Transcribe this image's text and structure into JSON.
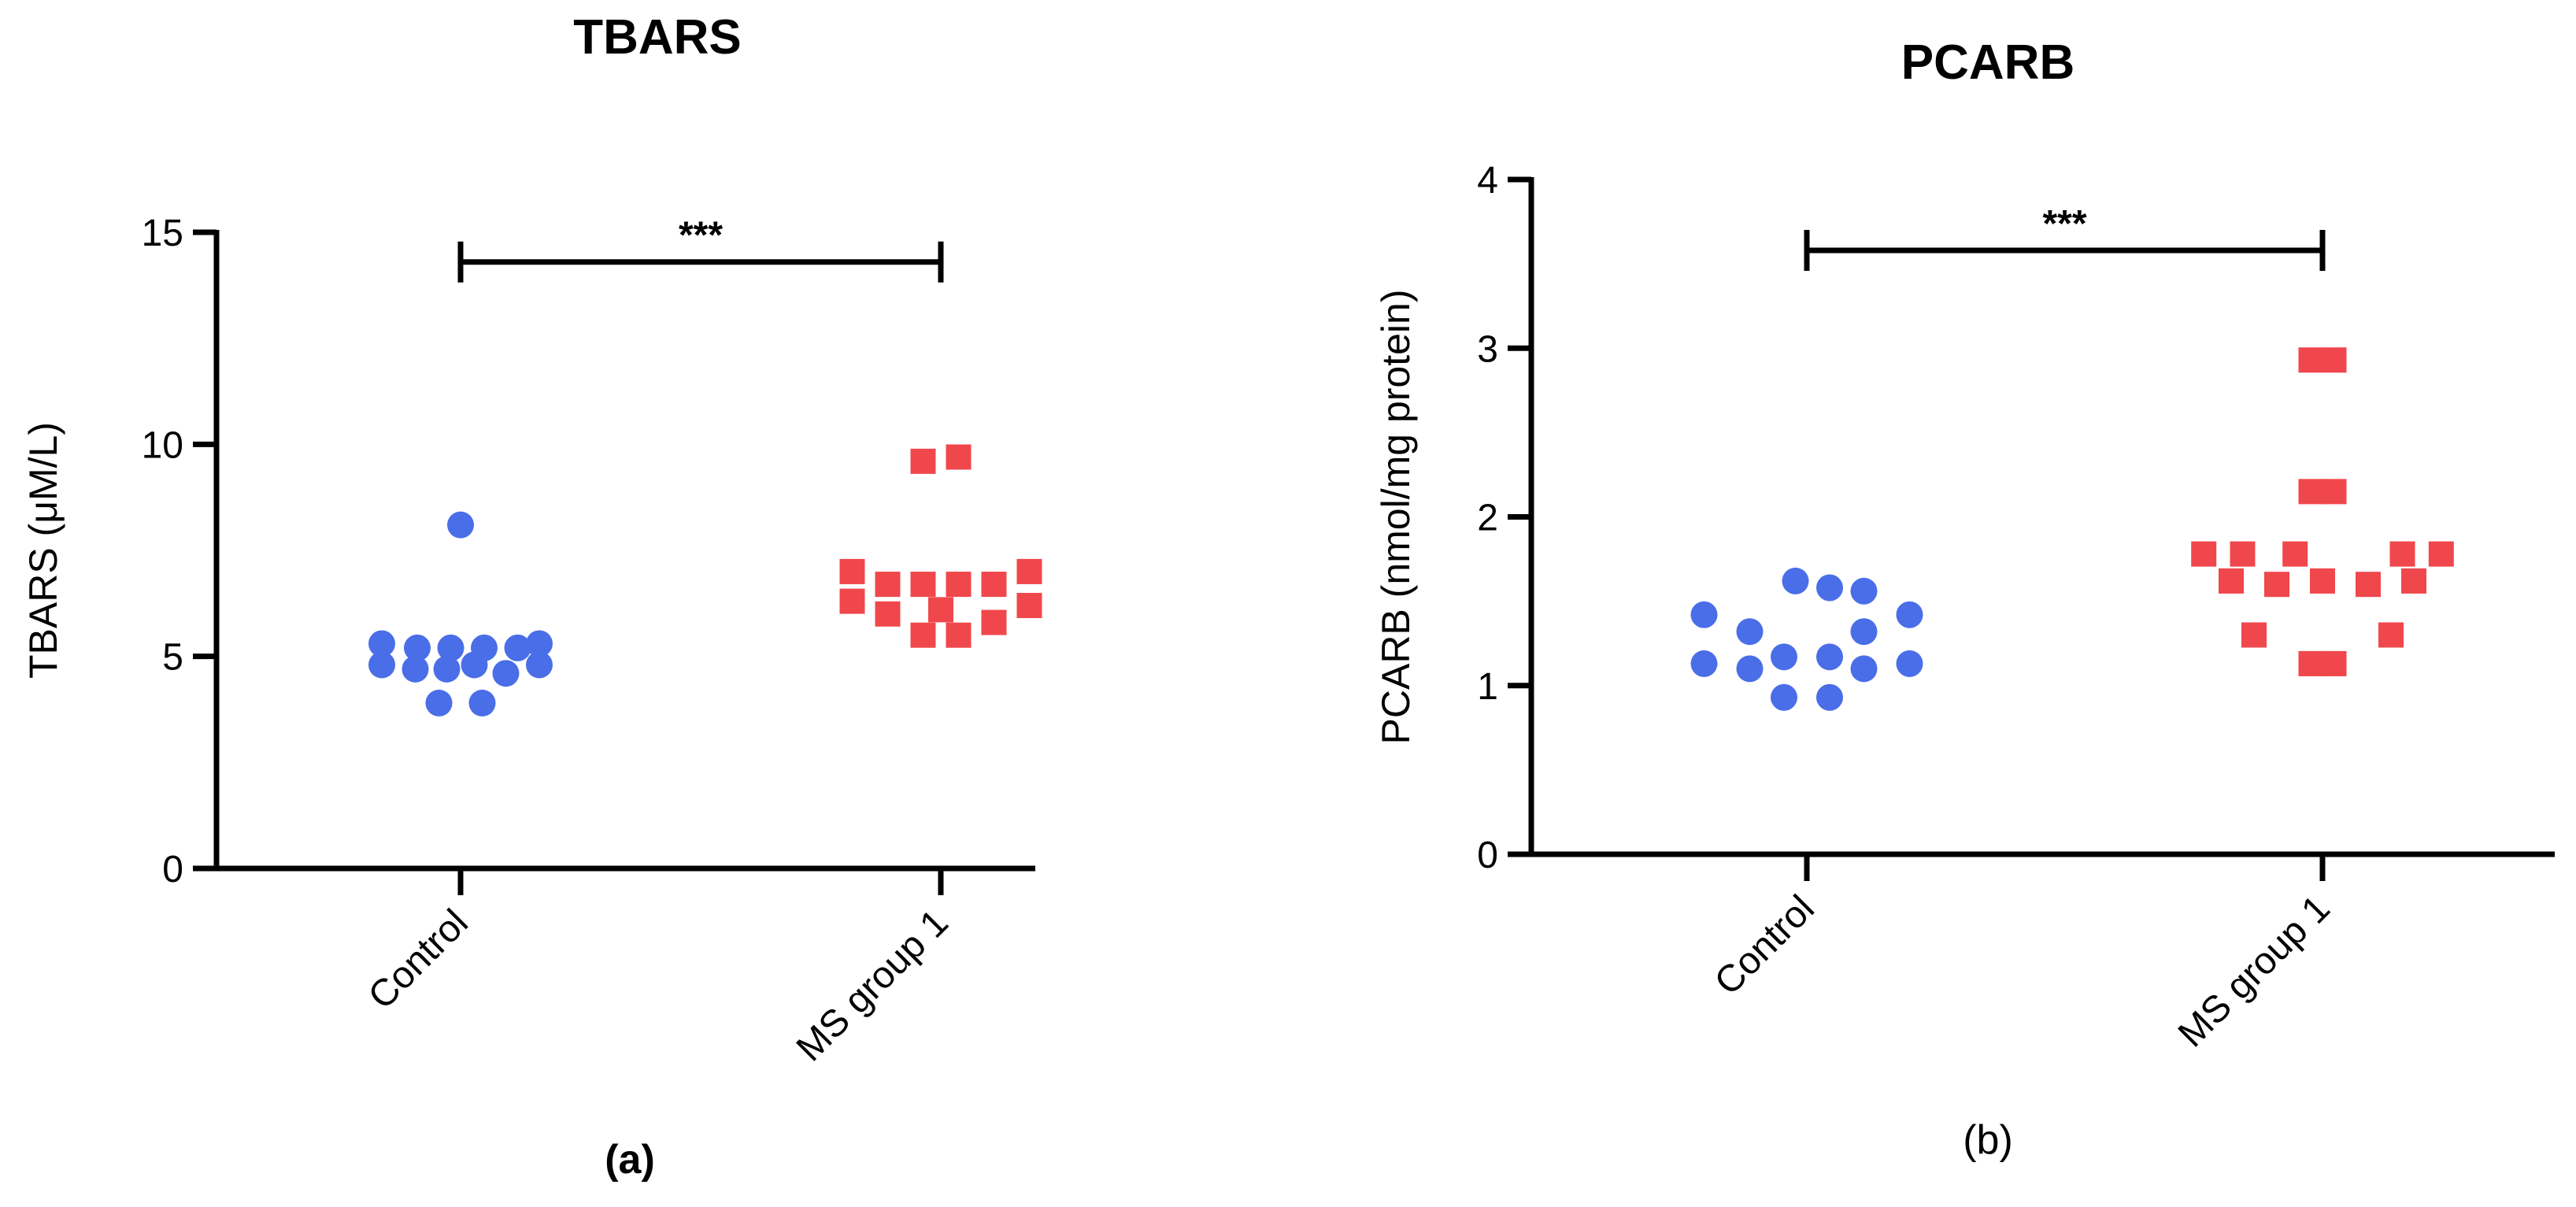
{
  "chart_data": [
    {
      "type": "scatter",
      "panel_label": "(a)",
      "title": "TBARS",
      "ylabel": "TBARS (μM/L)",
      "xlabel": "",
      "ylim": [
        0,
        15
      ],
      "yticks": [
        "0",
        "5",
        "10",
        "15"
      ],
      "categories": [
        "Control",
        "MS group 1"
      ],
      "grid": false,
      "significance": {
        "from": "Control",
        "to": "MS group 1",
        "label": "***",
        "y": 14.3
      },
      "series": [
        {
          "category": "Control",
          "marker": "circle",
          "color": "#4a6ee8",
          "points": [
            {
              "offset": 0.0,
              "y": 8.1
            },
            {
              "offset": -0.4,
              "y": 5.3
            },
            {
              "offset": -0.22,
              "y": 5.2
            },
            {
              "offset": -0.05,
              "y": 5.2
            },
            {
              "offset": 0.12,
              "y": 5.2
            },
            {
              "offset": 0.29,
              "y": 5.2
            },
            {
              "offset": 0.4,
              "y": 5.3
            },
            {
              "offset": -0.4,
              "y": 4.8
            },
            {
              "offset": -0.23,
              "y": 4.7
            },
            {
              "offset": -0.07,
              "y": 4.7
            },
            {
              "offset": 0.07,
              "y": 4.8
            },
            {
              "offset": 0.23,
              "y": 4.6
            },
            {
              "offset": 0.4,
              "y": 4.8
            },
            {
              "offset": -0.11,
              "y": 3.9
            },
            {
              "offset": 0.11,
              "y": 3.9
            }
          ]
        },
        {
          "category": "MS group 1",
          "marker": "square",
          "color": "#f0474c",
          "points": [
            {
              "offset": -0.09,
              "y": 9.6
            },
            {
              "offset": 0.09,
              "y": 9.7
            },
            {
              "offset": -0.45,
              "y": 7.0
            },
            {
              "offset": 0.45,
              "y": 7.0
            },
            {
              "offset": -0.27,
              "y": 6.7
            },
            {
              "offset": -0.09,
              "y": 6.7
            },
            {
              "offset": 0.09,
              "y": 6.7
            },
            {
              "offset": 0.27,
              "y": 6.7
            },
            {
              "offset": -0.45,
              "y": 6.3
            },
            {
              "offset": 0.45,
              "y": 6.2
            },
            {
              "offset": -0.27,
              "y": 6.0
            },
            {
              "offset": 0.0,
              "y": 6.1
            },
            {
              "offset": 0.27,
              "y": 5.8
            },
            {
              "offset": -0.09,
              "y": 5.5
            },
            {
              "offset": 0.09,
              "y": 5.5
            }
          ]
        }
      ]
    },
    {
      "type": "scatter",
      "panel_label": "(b)",
      "title": "PCARB",
      "ylabel": "PCARB (nmol/mg protein)",
      "xlabel": "",
      "ylim": [
        0,
        4
      ],
      "yticks": [
        "0",
        "1",
        "2",
        "3",
        "4"
      ],
      "categories": [
        "Control",
        "MS group 1"
      ],
      "grid": false,
      "significance": {
        "from": "Control",
        "to": "MS group 1",
        "label": "***",
        "y": 3.58
      },
      "series": [
        {
          "category": "Control",
          "marker": "circle",
          "color": "#4a6ee8",
          "points": [
            {
              "offset": -0.05,
              "y": 1.62
            },
            {
              "offset": 0.1,
              "y": 1.58
            },
            {
              "offset": 0.25,
              "y": 1.56
            },
            {
              "offset": -0.45,
              "y": 1.42
            },
            {
              "offset": 0.45,
              "y": 1.42
            },
            {
              "offset": -0.25,
              "y": 1.32
            },
            {
              "offset": 0.25,
              "y": 1.32
            },
            {
              "offset": -0.45,
              "y": 1.13
            },
            {
              "offset": -0.25,
              "y": 1.1
            },
            {
              "offset": -0.1,
              "y": 1.17
            },
            {
              "offset": 0.1,
              "y": 1.17
            },
            {
              "offset": 0.25,
              "y": 1.1
            },
            {
              "offset": 0.45,
              "y": 1.13
            },
            {
              "offset": -0.1,
              "y": 0.93
            },
            {
              "offset": 0.1,
              "y": 0.93
            }
          ]
        },
        {
          "category": "MS group 1",
          "marker": "square",
          "color": "#f0474c",
          "points": [
            {
              "offset": -0.05,
              "y": 2.93
            },
            {
              "offset": 0.05,
              "y": 2.93
            },
            {
              "offset": -0.05,
              "y": 2.15
            },
            {
              "offset": 0.05,
              "y": 2.15
            },
            {
              "offset": -0.52,
              "y": 1.78
            },
            {
              "offset": -0.35,
              "y": 1.78
            },
            {
              "offset": -0.12,
              "y": 1.78
            },
            {
              "offset": 0.35,
              "y": 1.78
            },
            {
              "offset": 0.52,
              "y": 1.78
            },
            {
              "offset": -0.4,
              "y": 1.62
            },
            {
              "offset": -0.2,
              "y": 1.6
            },
            {
              "offset": 0.0,
              "y": 1.62
            },
            {
              "offset": 0.2,
              "y": 1.6
            },
            {
              "offset": 0.4,
              "y": 1.62
            },
            {
              "offset": -0.3,
              "y": 1.3
            },
            {
              "offset": 0.3,
              "y": 1.3
            },
            {
              "offset": -0.05,
              "y": 1.13
            },
            {
              "offset": 0.05,
              "y": 1.13
            }
          ]
        }
      ]
    }
  ]
}
